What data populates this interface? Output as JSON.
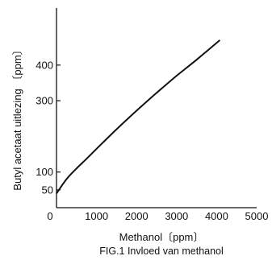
{
  "chart_data": {
    "type": "line",
    "xlabel": "Methanol〔ppm〕",
    "ylabel": "Butyl acetaat uitlezing 〔ppm〕",
    "caption": "FIG.1 Invloed van methanol",
    "x_ticks": [
      0,
      1000,
      2000,
      3000,
      4000,
      5000
    ],
    "y_ticks": [
      50,
      100,
      300,
      400
    ],
    "xlim": [
      0,
      5000
    ],
    "ylim": [
      0,
      560
    ],
    "grid": false,
    "series": [
      {
        "x": [
          0,
          250,
          500,
          750,
          1000,
          1500,
          2000,
          2500,
          3000,
          3500,
          4080
        ],
        "y": [
          40,
          80,
          110,
          137,
          165,
          220,
          272,
          322,
          370,
          415,
          470
        ]
      }
    ]
  }
}
